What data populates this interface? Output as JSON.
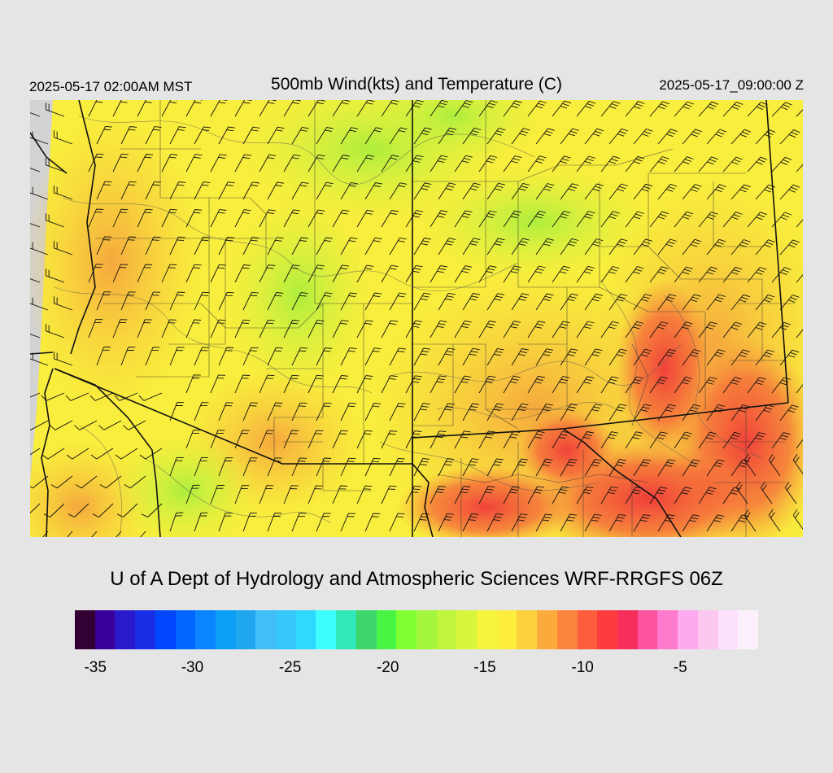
{
  "header": {
    "local_time": "2025-05-17 02:00AM MST",
    "title": "500mb Wind(kts) and Temperature (C)",
    "valid_time": "2025-05-17_09:00:00 Z"
  },
  "credit": "U of A Dept of Hydrology and Atmospheric Sciences WRF-RRGFS 06Z",
  "legend": {
    "colors": [
      "#330033",
      "#380099",
      "#2a1acc",
      "#1a2ee6",
      "#0047ff",
      "#0066ff",
      "#0a85ff",
      "#0d9ef5",
      "#1fa6ee",
      "#3fbff5",
      "#36c8fa",
      "#2ed8ff",
      "#3dfdfd",
      "#33e8b8",
      "#3dd66b",
      "#48f542",
      "#80ff33",
      "#a3f53d",
      "#bff53d",
      "#d9f53d",
      "#f5f53d",
      "#fdee3d",
      "#fdd13d",
      "#fdaa3d",
      "#fd843d",
      "#fd5c3d",
      "#fd3d3d",
      "#f52e5c",
      "#fd52a0",
      "#fd7acc",
      "#fdaaf0",
      "#fdc8f0",
      "#fde0fd",
      "#fdf0fd"
    ],
    "labels": [
      {
        "text": "-35",
        "frac": 0.03
      },
      {
        "text": "-30",
        "frac": 0.172
      },
      {
        "text": "-25",
        "frac": 0.315
      },
      {
        "text": "-20",
        "frac": 0.458
      },
      {
        "text": "-15",
        "frac": 0.6
      },
      {
        "text": "-10",
        "frac": 0.743
      },
      {
        "text": "-5",
        "frac": 0.886
      }
    ]
  }
}
